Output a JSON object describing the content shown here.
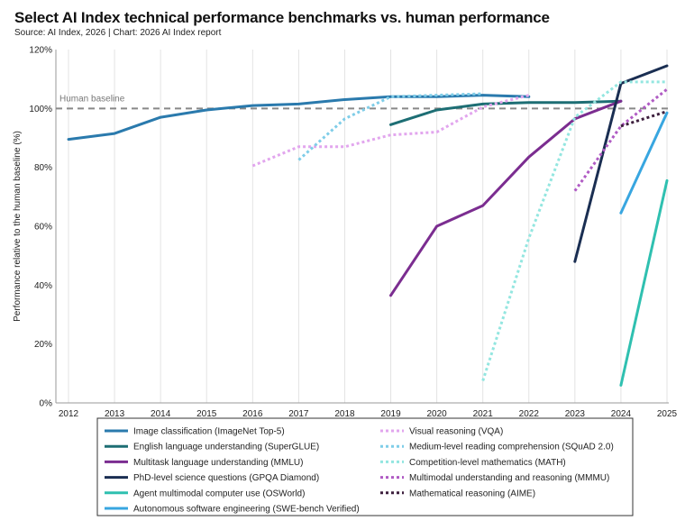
{
  "header": {
    "title": "Select AI Index technical performance benchmarks vs. human performance",
    "subtitle": "Source: AI Index, 2026 | Chart: 2026 AI Index report"
  },
  "chart_data": {
    "type": "line",
    "title": "Select AI Index technical performance benchmarks vs. human performance",
    "subtitle": "Source: AI Index, 2026 | Chart: 2026 AI Index report",
    "xlabel": "",
    "ylabel": "Performance relative to the human baseline (%)",
    "xlim": [
      2012,
      2025
    ],
    "ylim": [
      0,
      120
    ],
    "x_ticks": [
      "2012",
      "2013",
      "2014",
      "2015",
      "2016",
      "2017",
      "2018",
      "2019",
      "2020",
      "2021",
      "2022",
      "2023",
      "2024",
      "2025"
    ],
    "y_ticks": [
      {
        "value": 0,
        "label": "0%"
      },
      {
        "value": 20,
        "label": "20%"
      },
      {
        "value": 40,
        "label": "40%"
      },
      {
        "value": 60,
        "label": "60%"
      },
      {
        "value": 80,
        "label": "80%"
      },
      {
        "value": 100,
        "label": "100%"
      },
      {
        "value": 120,
        "label": "120%"
      }
    ],
    "grid": "vertical",
    "legend_position": "bottom",
    "baseline": {
      "label": "Human baseline",
      "value": 100,
      "color": "#888888"
    },
    "series": [
      {
        "name": "Image classification (ImageNet Top-5)",
        "color": "#2a7aad",
        "dash": "solid",
        "points": [
          [
            2012,
            89.5
          ],
          [
            2013,
            91.5
          ],
          [
            2014,
            97
          ],
          [
            2015,
            99.5
          ],
          [
            2016,
            101
          ],
          [
            2017,
            101.5
          ],
          [
            2018,
            103
          ],
          [
            2019,
            104
          ],
          [
            2020,
            104
          ],
          [
            2021,
            104.5
          ],
          [
            2022,
            104
          ]
        ]
      },
      {
        "name": "English language understanding (SuperGLUE)",
        "color": "#1d6e74",
        "dash": "solid",
        "points": [
          [
            2019,
            94.5
          ],
          [
            2020,
            99.5
          ],
          [
            2021,
            101.5
          ],
          [
            2022,
            102
          ],
          [
            2023,
            102
          ],
          [
            2024,
            102.5
          ]
        ]
      },
      {
        "name": "Multitask language understanding (MMLU)",
        "color": "#7b2d90",
        "dash": "solid",
        "points": [
          [
            2019,
            36.5
          ],
          [
            2020,
            60
          ],
          [
            2021,
            67
          ],
          [
            2022,
            83.5
          ],
          [
            2023,
            96.5
          ],
          [
            2024,
            102.5
          ]
        ]
      },
      {
        "name": "PhD-level science questions (GPQA Diamond)",
        "color": "#1a2e52",
        "dash": "solid",
        "points": [
          [
            2023,
            48
          ],
          [
            2024,
            108.5
          ],
          [
            2025,
            114.5
          ]
        ]
      },
      {
        "name": "Agent multimodal computer use (OSWorld)",
        "color": "#2fc0b0",
        "dash": "solid",
        "points": [
          [
            2024,
            6
          ],
          [
            2025,
            75.5
          ]
        ]
      },
      {
        "name": "Autonomous software engineering (SWE-bench Verified)",
        "color": "#38a6e0",
        "dash": "solid",
        "points": [
          [
            2024,
            64.5
          ],
          [
            2025,
            98.5
          ]
        ]
      },
      {
        "name": "Visual reasoning (VQA)",
        "color": "#e2a6ee",
        "dash": "dot",
        "points": [
          [
            2016,
            80.5
          ],
          [
            2017,
            87
          ],
          [
            2018,
            87
          ],
          [
            2019,
            91
          ],
          [
            2020,
            92
          ],
          [
            2021,
            100.5
          ],
          [
            2022,
            104.5
          ]
        ]
      },
      {
        "name": "Medium-level reading comprehension (SQuAD 2.0)",
        "color": "#7fcde8",
        "dash": "dot",
        "points": [
          [
            2017,
            82.5
          ],
          [
            2018,
            96.5
          ],
          [
            2019,
            104
          ],
          [
            2020,
            104.5
          ],
          [
            2021,
            105
          ]
        ]
      },
      {
        "name": "Competition-level mathematics (MATH)",
        "color": "#93e6e0",
        "dash": "dot",
        "points": [
          [
            2021,
            7.5
          ],
          [
            2022,
            56
          ],
          [
            2023,
            97
          ],
          [
            2024,
            109
          ],
          [
            2025,
            109
          ]
        ]
      },
      {
        "name": "Multimodal understanding and reasoning (MMMU)",
        "color": "#b05bc4",
        "dash": "dot",
        "points": [
          [
            2023,
            72
          ],
          [
            2024,
            94
          ],
          [
            2025,
            106.5
          ]
        ]
      },
      {
        "name": "Mathematical reasoning (AIME)",
        "color": "#3d1f3d",
        "dash": "dot",
        "points": [
          [
            2024,
            94
          ],
          [
            2025,
            99
          ]
        ]
      }
    ],
    "legend_order": [
      [
        "Image classification (ImageNet Top-5)",
        "Visual reasoning (VQA)"
      ],
      [
        "English language understanding (SuperGLUE)",
        "Medium-level reading comprehension (SQuAD 2.0)"
      ],
      [
        "Multitask language understanding (MMLU)",
        "Competition-level mathematics (MATH)"
      ],
      [
        "PhD-level science questions (GPQA Diamond)",
        "Multimodal understanding and reasoning (MMMU)"
      ],
      [
        "Agent multimodal computer use (OSWorld)",
        "Mathematical reasoning (AIME)"
      ],
      [
        "Autonomous software engineering (SWE-bench Verified)",
        null
      ]
    ]
  }
}
